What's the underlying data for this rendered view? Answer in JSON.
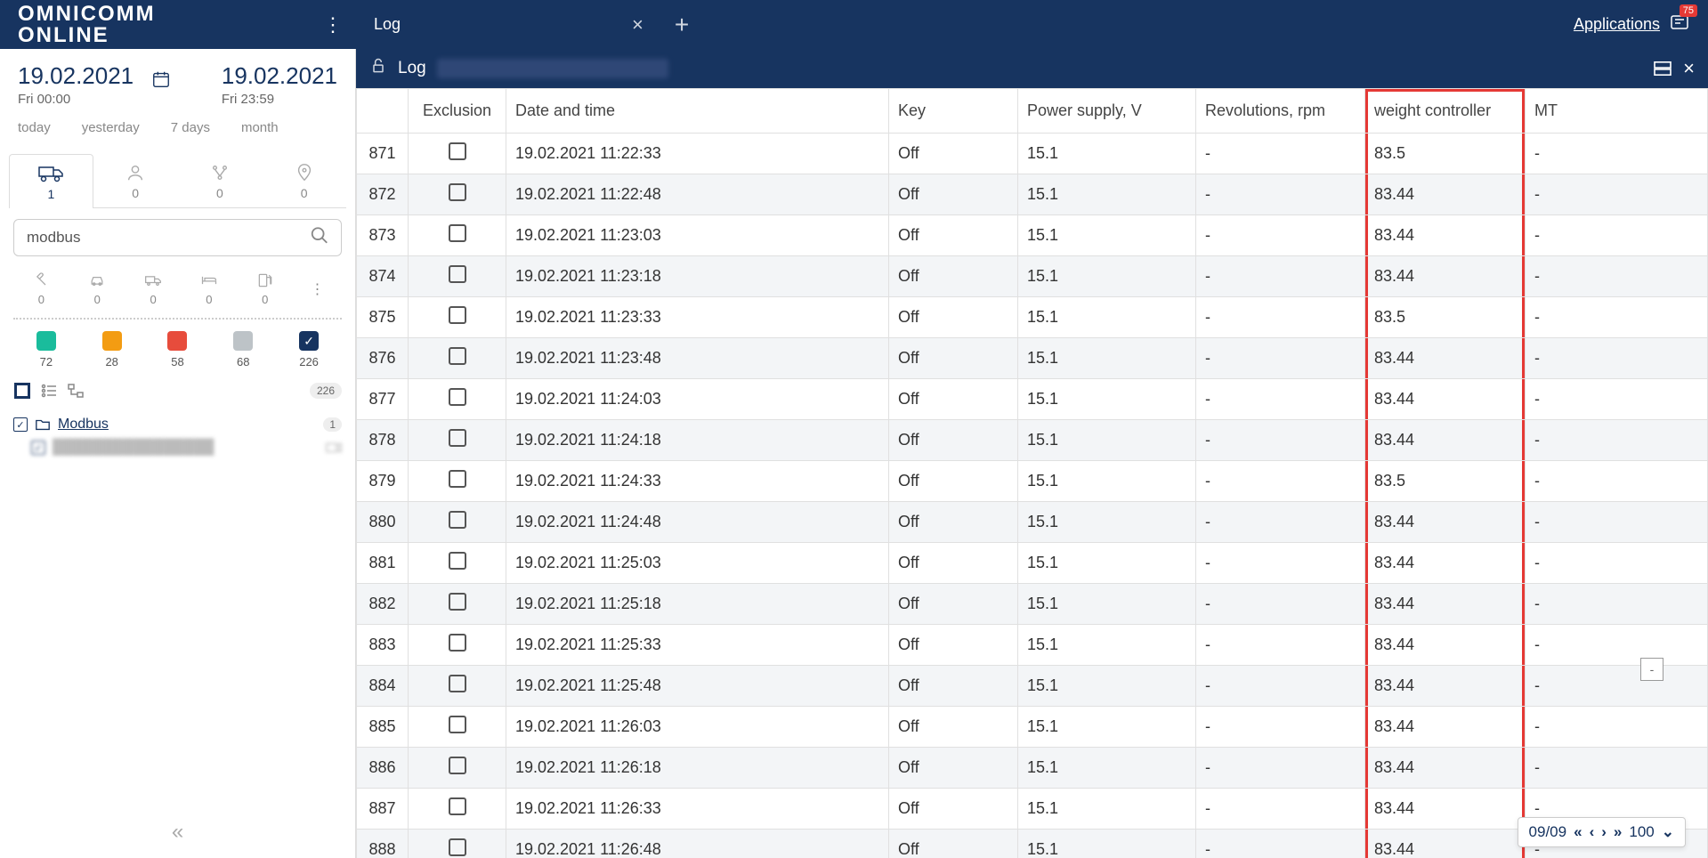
{
  "logo": {
    "line1": "OMNICOMM",
    "line2": "ONLINE"
  },
  "tab": {
    "title": "Log"
  },
  "topbar": {
    "applications": "Applications",
    "notif_count": "75"
  },
  "dates": {
    "from_date": "19.02.2021",
    "from_sub": "Fri  00:00",
    "to_date": "19.02.2021",
    "to_sub": "Fri  23:59"
  },
  "quick": {
    "today": "today",
    "yesterday": "yesterday",
    "days7": "7 days",
    "month": "month"
  },
  "side_tabs": [
    {
      "count": "1"
    },
    {
      "count": "0"
    },
    {
      "count": "0"
    },
    {
      "count": "0"
    }
  ],
  "search": {
    "value": "modbus"
  },
  "filters": [
    {
      "count": "0"
    },
    {
      "count": "0"
    },
    {
      "count": "0"
    },
    {
      "count": "0"
    },
    {
      "count": "0"
    }
  ],
  "colors": [
    {
      "hex": "#1abc9c",
      "count": "72",
      "checked": false
    },
    {
      "hex": "#f39c12",
      "count": "28",
      "checked": false
    },
    {
      "hex": "#e74c3c",
      "count": "58",
      "checked": false
    },
    {
      "hex": "#bdc3c7",
      "count": "68",
      "checked": false
    },
    {
      "hex": "#173460",
      "count": "226",
      "checked": true
    }
  ],
  "view_badge": "226",
  "tree": {
    "group": "Modbus",
    "group_count": "1"
  },
  "content_header": {
    "title": "Log"
  },
  "table": {
    "columns": [
      "",
      "Exclusion",
      "Date and time",
      "Key",
      "Power supply, V",
      "Revolutions, rpm",
      "weight controller",
      "MT"
    ],
    "rows": [
      {
        "idx": "871",
        "dt": "19.02.2021 11:22:33",
        "key": "Off",
        "ps": "15.1",
        "rev": "-",
        "wc": "83.5",
        "mt": "-"
      },
      {
        "idx": "872",
        "dt": "19.02.2021 11:22:48",
        "key": "Off",
        "ps": "15.1",
        "rev": "-",
        "wc": "83.44",
        "mt": "-"
      },
      {
        "idx": "873",
        "dt": "19.02.2021 11:23:03",
        "key": "Off",
        "ps": "15.1",
        "rev": "-",
        "wc": "83.44",
        "mt": "-"
      },
      {
        "idx": "874",
        "dt": "19.02.2021 11:23:18",
        "key": "Off",
        "ps": "15.1",
        "rev": "-",
        "wc": "83.44",
        "mt": "-"
      },
      {
        "idx": "875",
        "dt": "19.02.2021 11:23:33",
        "key": "Off",
        "ps": "15.1",
        "rev": "-",
        "wc": "83.5",
        "mt": "-"
      },
      {
        "idx": "876",
        "dt": "19.02.2021 11:23:48",
        "key": "Off",
        "ps": "15.1",
        "rev": "-",
        "wc": "83.44",
        "mt": "-"
      },
      {
        "idx": "877",
        "dt": "19.02.2021 11:24:03",
        "key": "Off",
        "ps": "15.1",
        "rev": "-",
        "wc": "83.44",
        "mt": "-"
      },
      {
        "idx": "878",
        "dt": "19.02.2021 11:24:18",
        "key": "Off",
        "ps": "15.1",
        "rev": "-",
        "wc": "83.44",
        "mt": "-"
      },
      {
        "idx": "879",
        "dt": "19.02.2021 11:24:33",
        "key": "Off",
        "ps": "15.1",
        "rev": "-",
        "wc": "83.5",
        "mt": "-"
      },
      {
        "idx": "880",
        "dt": "19.02.2021 11:24:48",
        "key": "Off",
        "ps": "15.1",
        "rev": "-",
        "wc": "83.44",
        "mt": "-"
      },
      {
        "idx": "881",
        "dt": "19.02.2021 11:25:03",
        "key": "Off",
        "ps": "15.1",
        "rev": "-",
        "wc": "83.44",
        "mt": "-"
      },
      {
        "idx": "882",
        "dt": "19.02.2021 11:25:18",
        "key": "Off",
        "ps": "15.1",
        "rev": "-",
        "wc": "83.44",
        "mt": "-"
      },
      {
        "idx": "883",
        "dt": "19.02.2021 11:25:33",
        "key": "Off",
        "ps": "15.1",
        "rev": "-",
        "wc": "83.44",
        "mt": "-"
      },
      {
        "idx": "884",
        "dt": "19.02.2021 11:25:48",
        "key": "Off",
        "ps": "15.1",
        "rev": "-",
        "wc": "83.44",
        "mt": "-"
      },
      {
        "idx": "885",
        "dt": "19.02.2021 11:26:03",
        "key": "Off",
        "ps": "15.1",
        "rev": "-",
        "wc": "83.44",
        "mt": "-"
      },
      {
        "idx": "886",
        "dt": "19.02.2021 11:26:18",
        "key": "Off",
        "ps": "15.1",
        "rev": "-",
        "wc": "83.44",
        "mt": "-"
      },
      {
        "idx": "887",
        "dt": "19.02.2021 11:26:33",
        "key": "Off",
        "ps": "15.1",
        "rev": "-",
        "wc": "83.44",
        "mt": "-"
      },
      {
        "idx": "888",
        "dt": "19.02.2021 11:26:48",
        "key": "Off",
        "ps": "15.1",
        "rev": "-",
        "wc": "83.44",
        "mt": "-"
      }
    ]
  },
  "pager": {
    "pos": "09/09",
    "size": "100"
  }
}
